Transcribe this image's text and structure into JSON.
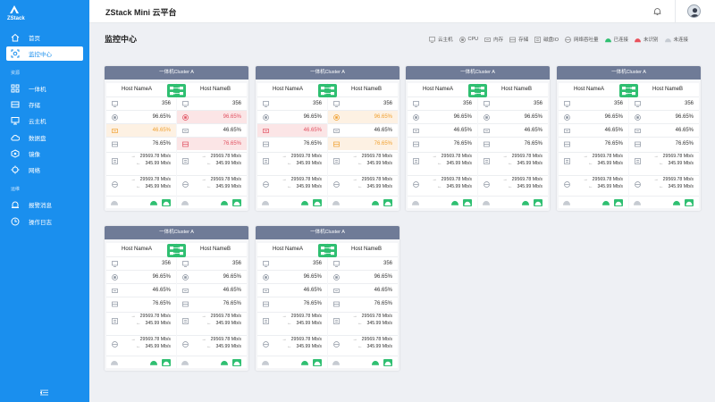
{
  "app": {
    "logo_text": "ZStack",
    "title": "ZStack Mini 云平台"
  },
  "sidebar": {
    "top_items": [
      {
        "label": "首页"
      },
      {
        "label": "监控中心"
      }
    ],
    "sections": [
      {
        "label": "资源",
        "items": [
          {
            "label": "一体机"
          },
          {
            "label": "存储"
          },
          {
            "label": "云主机"
          },
          {
            "label": "数据盘"
          },
          {
            "label": "镜像"
          },
          {
            "label": "网络"
          }
        ]
      },
      {
        "label": "运维",
        "items": [
          {
            "label": "报警消息"
          },
          {
            "label": "操作日志"
          }
        ]
      }
    ]
  },
  "page": {
    "title": "监控中心"
  },
  "legend": {
    "items": [
      "云主机",
      "CPU",
      "内存",
      "存储",
      "磁盘IO",
      "网络吞吐量"
    ],
    "status": [
      "已连接",
      "未识别",
      "未连接"
    ]
  },
  "colors": {
    "accent": "#1a8fee",
    "connected": "#2fbf71",
    "unrecognized": "#e9525c",
    "disconnected": "#c6cbd2",
    "warning": "#f0a030",
    "error": "#e05060"
  },
  "clusters": [
    {
      "title": "一体机Cluster A",
      "hosts": [
        {
          "name": "Host NameA",
          "vm": "356",
          "cpu": "96.65%",
          "mem": "46.65%",
          "storage": "76.65%",
          "disk_up": "29569.78 Mb/s",
          "disk_down": "345.99 Mb/s",
          "net_up": "29569.78 Mb/s",
          "net_down": "345.99 Mb/s",
          "cpu_state": "normal",
          "mem_state": "warning",
          "storage_state": "normal"
        },
        {
          "name": "Host NameB",
          "vm": "356",
          "cpu": "96.65%",
          "mem": "46.65%",
          "storage": "76.65%",
          "disk_up": "29569.78 Mb/s",
          "disk_down": "345.99 Mb/s",
          "net_up": "29569.78 Mb/s",
          "net_down": "345.99 Mb/s",
          "cpu_state": "error",
          "mem_state": "normal",
          "storage_state": "error"
        }
      ]
    },
    {
      "title": "一体机Cluster A",
      "hosts": [
        {
          "name": "Host NameA",
          "vm": "356",
          "cpu": "96.65%",
          "mem": "46.65%",
          "storage": "76.65%",
          "disk_up": "29569.78 Mb/s",
          "disk_down": "345.99 Mb/s",
          "net_up": "29569.78 Mb/s",
          "net_down": "345.99 Mb/s",
          "cpu_state": "normal",
          "mem_state": "error",
          "storage_state": "normal"
        },
        {
          "name": "Host NameB",
          "vm": "356",
          "cpu": "96.65%",
          "mem": "46.65%",
          "storage": "76.65%",
          "disk_up": "29569.78 Mb/s",
          "disk_down": "345.99 Mb/s",
          "net_up": "29569.78 Mb/s",
          "net_down": "345.99 Mb/s",
          "cpu_state": "warning",
          "mem_state": "normal",
          "storage_state": "warning"
        }
      ]
    },
    {
      "title": "一体机Cluster A",
      "hosts": [
        {
          "name": "Host NameA",
          "vm": "356",
          "cpu": "96.65%",
          "mem": "46.65%",
          "storage": "76.65%",
          "disk_up": "29569.78 Mb/s",
          "disk_down": "345.99 Mb/s",
          "net_up": "29569.78 Mb/s",
          "net_down": "345.99 Mb/s",
          "cpu_state": "normal",
          "mem_state": "normal",
          "storage_state": "normal"
        },
        {
          "name": "Host NameB",
          "vm": "356",
          "cpu": "96.65%",
          "mem": "46.65%",
          "storage": "76.65%",
          "disk_up": "29569.78 Mb/s",
          "disk_down": "345.99 Mb/s",
          "net_up": "29569.78 Mb/s",
          "net_down": "345.99 Mb/s",
          "cpu_state": "normal",
          "mem_state": "normal",
          "storage_state": "normal"
        }
      ]
    },
    {
      "title": "一体机Cluster A",
      "hosts": [
        {
          "name": "Host NameA",
          "vm": "356",
          "cpu": "96.65%",
          "mem": "46.65%",
          "storage": "76.65%",
          "disk_up": "29569.78 Mb/s",
          "disk_down": "345.99 Mb/s",
          "net_up": "29569.78 Mb/s",
          "net_down": "345.99 Mb/s",
          "cpu_state": "normal",
          "mem_state": "normal",
          "storage_state": "normal"
        },
        {
          "name": "Host NameB",
          "vm": "356",
          "cpu": "96.65%",
          "mem": "46.65%",
          "storage": "76.65%",
          "disk_up": "29569.78 Mb/s",
          "disk_down": "345.99 Mb/s",
          "net_up": "29569.78 Mb/s",
          "net_down": "345.99 Mb/s",
          "cpu_state": "normal",
          "mem_state": "normal",
          "storage_state": "normal"
        }
      ]
    },
    {
      "title": "一体机Cluster A",
      "hosts": [
        {
          "name": "Host NameA",
          "vm": "356",
          "cpu": "96.65%",
          "mem": "46.65%",
          "storage": "76.65%",
          "disk_up": "29569.78 Mb/s",
          "disk_down": "345.99 Mb/s",
          "net_up": "29569.78 Mb/s",
          "net_down": "345.99 Mb/s",
          "cpu_state": "normal",
          "mem_state": "normal",
          "storage_state": "normal"
        },
        {
          "name": "Host NameB",
          "vm": "356",
          "cpu": "96.65%",
          "mem": "46.65%",
          "storage": "76.65%",
          "disk_up": "29569.78 Mb/s",
          "disk_down": "345.99 Mb/s",
          "net_up": "29569.78 Mb/s",
          "net_down": "345.99 Mb/s",
          "cpu_state": "normal",
          "mem_state": "normal",
          "storage_state": "normal"
        }
      ]
    },
    {
      "title": "一体机Cluster A",
      "hosts": [
        {
          "name": "Host NameA",
          "vm": "356",
          "cpu": "96.65%",
          "mem": "46.65%",
          "storage": "76.65%",
          "disk_up": "29569.78 Mb/s",
          "disk_down": "345.99 Mb/s",
          "net_up": "29569.78 Mb/s",
          "net_down": "345.99 Mb/s",
          "cpu_state": "normal",
          "mem_state": "normal",
          "storage_state": "normal"
        },
        {
          "name": "Host NameB",
          "vm": "356",
          "cpu": "96.65%",
          "mem": "46.65%",
          "storage": "76.65%",
          "disk_up": "29569.78 Mb/s",
          "disk_down": "345.99 Mb/s",
          "net_up": "29569.78 Mb/s",
          "net_down": "345.99 Mb/s",
          "cpu_state": "normal",
          "mem_state": "normal",
          "storage_state": "normal"
        }
      ]
    }
  ]
}
